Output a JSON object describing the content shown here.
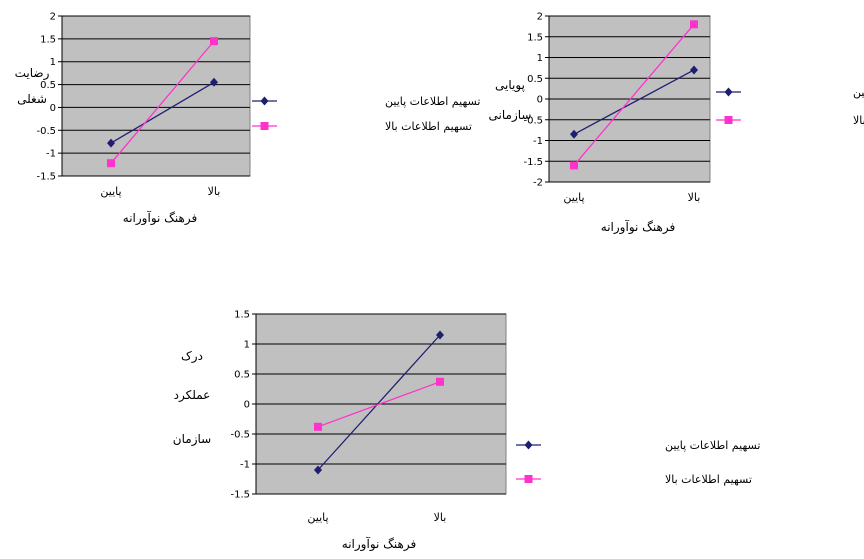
{
  "chart_data": [
    {
      "type": "line",
      "categories": [
        "پایین",
        "بالا"
      ],
      "xlabel": "فرهنگ نوآورانه",
      "ylabel": [
        "رضایت",
        "شغلی"
      ],
      "ylim": [
        -1.5,
        2
      ],
      "yticks": [
        -1.5,
        -1,
        -0.5,
        0,
        0.5,
        1,
        1.5,
        2
      ],
      "tick_labels": [
        "-1.5",
        "-1",
        "-0.5",
        "0",
        "0.5",
        "1",
        "1.5",
        "2"
      ],
      "grid": true,
      "legend": "right",
      "series": [
        {
          "name": "تسهیم اطلاعات پایین",
          "values": [
            -0.78,
            0.55
          ],
          "color": "#1f1f70",
          "marker": "diamond"
        },
        {
          "name": "تسهیم اطلاعات بالا",
          "values": [
            -1.22,
            1.45
          ],
          "color": "#ff33cc",
          "marker": "square"
        }
      ]
    },
    {
      "type": "line",
      "categories": [
        "پایین",
        "بالا"
      ],
      "xlabel": "فرهنگ نوآورانه",
      "ylabel": [
        "پویایی",
        "سازمانی"
      ],
      "ylim": [
        -2,
        2
      ],
      "yticks": [
        -2,
        -1.5,
        -1,
        -0.5,
        0,
        0.5,
        1,
        1.5,
        2
      ],
      "tick_labels": [
        "-2",
        "-1.5",
        "-1",
        "-0.5",
        "0",
        "0.5",
        "1",
        "1.5",
        "2"
      ],
      "grid": true,
      "legend": "right",
      "series": [
        {
          "name": "تسهیم اطلاعات پایین",
          "values": [
            -0.85,
            0.7
          ],
          "color": "#1f1f70",
          "marker": "diamond"
        },
        {
          "name": "تسهیم اطلاعات بالا",
          "values": [
            -1.6,
            1.8
          ],
          "color": "#ff33cc",
          "marker": "square"
        }
      ]
    },
    {
      "type": "line",
      "categories": [
        "پایین",
        "بالا"
      ],
      "xlabel": "فرهنگ نوآورانه",
      "ylabel": [
        "درک",
        "عملکرد",
        "سازمان"
      ],
      "ylim": [
        -1.5,
        1.5
      ],
      "yticks": [
        -1.5,
        -1,
        -0.5,
        0,
        0.5,
        1,
        1.5
      ],
      "tick_labels": [
        "-1.5",
        "-1",
        "-0.5",
        "0",
        "0.5",
        "1",
        "1.5"
      ],
      "grid": true,
      "legend": "right",
      "series": [
        {
          "name": "تسهیم اطلاعات پایین",
          "values": [
            -1.1,
            1.15
          ],
          "color": "#1f1f70",
          "marker": "diamond"
        },
        {
          "name": "تسهیم اطلاعات بالا",
          "values": [
            -0.38,
            0.37
          ],
          "color": "#ff33cc",
          "marker": "square"
        }
      ]
    }
  ]
}
